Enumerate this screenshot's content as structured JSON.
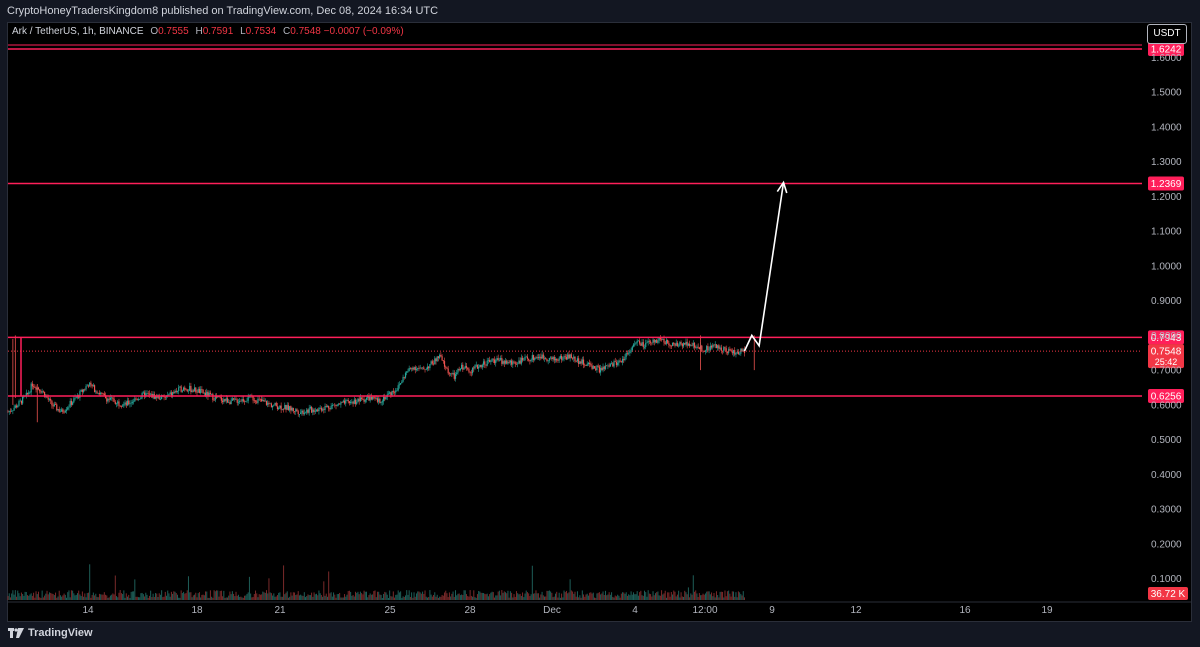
{
  "header": {
    "published_text": "CryptoHoneyTradersKingdom8 published on TradingView.com, Dec 08, 2024 16:34 UTC"
  },
  "legend": {
    "symbol": "Ark / TetherUS, 1h, BINANCE",
    "open_label": "O",
    "open": "0.7555",
    "high_label": "H",
    "high": "0.7591",
    "low_label": "L",
    "low": "0.7534",
    "close_label": "C",
    "close": "0.7548",
    "change": "−0.0007 (−0.09%)"
  },
  "currency": "USDT",
  "footer": {
    "brand": "TradingView"
  },
  "chart_data": {
    "type": "candlestick",
    "x_ticks": [
      "14",
      "18",
      "21",
      "25",
      "28",
      "Dec",
      "4",
      "12:00",
      "9",
      "12",
      "16",
      "19"
    ],
    "y_ticks": [
      "0.1000",
      "0.2000",
      "0.3000",
      "0.4000",
      "0.5000",
      "0.6000",
      "0.7000",
      "0.8000",
      "0.9000",
      "1.0000",
      "1.1000",
      "1.2000",
      "1.3000",
      "1.4000",
      "1.5000",
      "1.6000"
    ],
    "y_range": [
      0.05,
      1.65
    ],
    "horizontal_levels": [
      {
        "value": 1.6242,
        "label": "1.6242"
      },
      {
        "value": 1.2369,
        "label": "1.2369"
      },
      {
        "value": 0.7943,
        "label": "0.7943"
      },
      {
        "value": 0.6256,
        "label": "0.6256"
      }
    ],
    "last_price": {
      "value": 0.7548,
      "label": "0.7548",
      "countdown": "25:42"
    },
    "volume_label": "36.72 K",
    "price_path": [
      [
        0,
        0.58
      ],
      [
        4,
        0.6
      ],
      [
        8,
        0.63
      ],
      [
        10,
        0.66
      ],
      [
        14,
        0.64
      ],
      [
        18,
        0.6
      ],
      [
        22,
        0.58
      ],
      [
        28,
        0.62
      ],
      [
        33,
        0.66
      ],
      [
        40,
        0.62
      ],
      [
        48,
        0.6
      ],
      [
        56,
        0.63
      ],
      [
        64,
        0.62
      ],
      [
        72,
        0.65
      ],
      [
        78,
        0.64
      ],
      [
        85,
        0.62
      ],
      [
        92,
        0.61
      ],
      [
        100,
        0.62
      ],
      [
        108,
        0.6
      ],
      [
        115,
        0.59
      ],
      [
        120,
        0.58
      ],
      [
        128,
        0.59
      ],
      [
        135,
        0.6
      ],
      [
        142,
        0.61
      ],
      [
        148,
        0.62
      ],
      [
        152,
        0.61
      ],
      [
        156,
        0.63
      ],
      [
        160,
        0.65
      ],
      [
        163,
        0.69
      ],
      [
        166,
        0.71
      ],
      [
        170,
        0.7
      ],
      [
        174,
        0.72
      ],
      [
        177,
        0.74
      ],
      [
        180,
        0.7
      ],
      [
        183,
        0.68
      ],
      [
        186,
        0.71
      ],
      [
        190,
        0.7
      ],
      [
        195,
        0.72
      ],
      [
        200,
        0.73
      ],
      [
        206,
        0.72
      ],
      [
        212,
        0.73
      ],
      [
        218,
        0.74
      ],
      [
        224,
        0.73
      ],
      [
        230,
        0.74
      ],
      [
        236,
        0.72
      ],
      [
        240,
        0.71
      ],
      [
        243,
        0.7
      ],
      [
        246,
        0.71
      ],
      [
        249,
        0.72
      ],
      [
        252,
        0.73
      ],
      [
        255,
        0.76
      ],
      [
        258,
        0.78
      ],
      [
        261,
        0.77
      ],
      [
        264,
        0.78
      ],
      [
        267,
        0.79
      ],
      [
        270,
        0.78
      ],
      [
        274,
        0.77
      ],
      [
        278,
        0.78
      ],
      [
        282,
        0.77
      ],
      [
        286,
        0.76
      ],
      [
        290,
        0.77
      ],
      [
        294,
        0.76
      ],
      [
        298,
        0.75
      ],
      [
        302,
        0.755
      ]
    ],
    "projection": [
      [
        302,
        0.755
      ],
      [
        305,
        0.8
      ],
      [
        308,
        0.77
      ],
      [
        318,
        1.24
      ]
    ],
    "x_domain": [
      0,
      465
    ]
  }
}
